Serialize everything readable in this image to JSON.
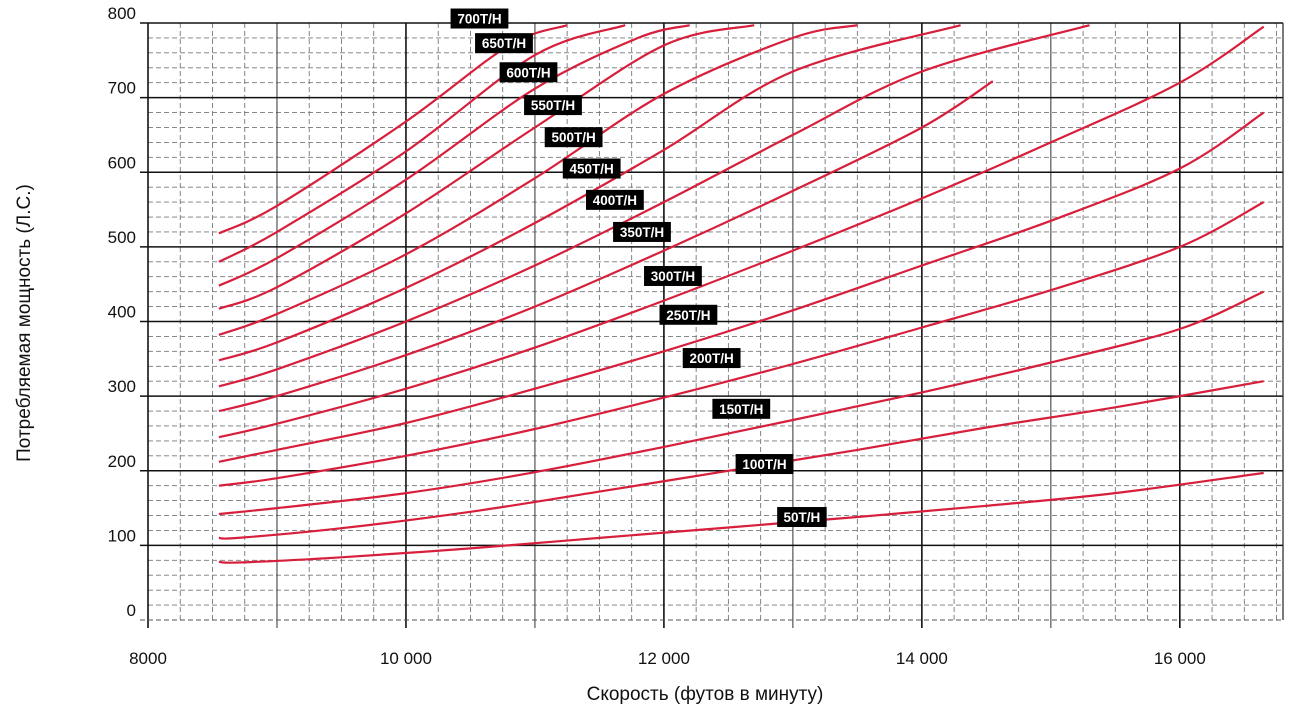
{
  "chart_data": {
    "type": "line",
    "title": "",
    "xlabel": "Скорость (футов в минуту)",
    "ylabel": "Потребляемая мощность (Л.С.)",
    "xlim": [
      8000,
      16800
    ],
    "ylim": [
      0,
      800
    ],
    "x_ticks": [
      8000,
      10000,
      12000,
      14000,
      16000
    ],
    "x_tick_labels": [
      "8000",
      "10 000",
      "12 000",
      "14 000",
      "16 000"
    ],
    "y_ticks": [
      0,
      100,
      200,
      300,
      400,
      500,
      600,
      700,
      800
    ],
    "y_tick_labels": [
      "0",
      "100",
      "200",
      "300",
      "400",
      "500",
      "600",
      "700",
      "800"
    ],
    "grid": true,
    "line_color": "#d71f3c",
    "label_bg_color": "#000000",
    "series": [
      {
        "name": "50T/H",
        "x": [
          8550,
          8700,
          9500,
          10500,
          11500,
          12500,
          13500,
          14500,
          15500,
          16650
        ],
        "y": [
          78,
          77,
          84,
          96,
          110,
          124,
          138,
          153,
          170,
          197
        ],
        "label_x": 13070,
        "label_y": 138
      },
      {
        "name": "100T/H",
        "x": [
          8550,
          8700,
          9500,
          10500,
          11500,
          12500,
          13500,
          14500,
          15500,
          16650
        ],
        "y": [
          110,
          110,
          123,
          145,
          172,
          200,
          228,
          258,
          285,
          320
        ],
        "label_x": 12780,
        "label_y": 209
      },
      {
        "name": "150T/H",
        "x": [
          8550,
          9000,
          10000,
          11000,
          12000,
          13000,
          14000,
          15000,
          16000,
          16650
        ],
        "y": [
          142,
          150,
          170,
          198,
          232,
          268,
          305,
          345,
          390,
          440
        ],
        "label_x": 12600,
        "label_y": 283
      },
      {
        "name": "200T/H",
        "x": [
          8550,
          9000,
          10000,
          11000,
          12000,
          13000,
          14000,
          15000,
          16000,
          16650
        ],
        "y": [
          180,
          190,
          220,
          256,
          298,
          343,
          392,
          442,
          500,
          560
        ],
        "label_x": 12370,
        "label_y": 351
      },
      {
        "name": "250T/H",
        "x": [
          8550,
          9000,
          10000,
          11000,
          12000,
          13000,
          14000,
          15000,
          16000,
          16650
        ],
        "y": [
          212,
          228,
          264,
          310,
          360,
          415,
          475,
          535,
          605,
          680
        ],
        "label_x": 12190,
        "label_y": 409
      },
      {
        "name": "300T/H",
        "x": [
          8550,
          9000,
          10000,
          11000,
          12000,
          13000,
          14000,
          15000,
          16000,
          16650
        ],
        "y": [
          245,
          263,
          310,
          365,
          428,
          495,
          565,
          640,
          720,
          795
        ],
        "label_x": 12070,
        "label_y": 461
      },
      {
        "name": "350T/H",
        "x": [
          8550,
          9000,
          10000,
          11000,
          12000,
          13000,
          14000,
          14550
        ],
        "y": [
          280,
          300,
          355,
          420,
          495,
          575,
          660,
          722
        ],
        "label_x": 11830,
        "label_y": 520
      },
      {
        "name": "400T/H",
        "x": [
          8550,
          9000,
          10000,
          11000,
          12000,
          13000,
          14000,
          15300
        ],
        "y": [
          313,
          336,
          400,
          475,
          560,
          650,
          735,
          797
        ],
        "label_x": 11620,
        "label_y": 563
      },
      {
        "name": "450T/H",
        "x": [
          8550,
          9000,
          10000,
          11000,
          12000,
          13000,
          14300
        ],
        "y": [
          348,
          372,
          445,
          532,
          630,
          735,
          797
        ],
        "label_x": 11440,
        "label_y": 605
      },
      {
        "name": "500T/H",
        "x": [
          8550,
          9000,
          10000,
          11000,
          12000,
          13000,
          13500
        ],
        "y": [
          382,
          410,
          490,
          592,
          705,
          780,
          797
        ],
        "label_x": 11300,
        "label_y": 647
      },
      {
        "name": "550T/H",
        "x": [
          8550,
          9000,
          10000,
          11000,
          12000,
          12700
        ],
        "y": [
          417,
          446,
          545,
          660,
          770,
          797
        ],
        "label_x": 11140,
        "label_y": 690
      },
      {
        "name": "600T/H",
        "x": [
          8550,
          9000,
          10000,
          11000,
          11800,
          12200
        ],
        "y": [
          448,
          485,
          590,
          712,
          780,
          797
        ],
        "label_x": 10950,
        "label_y": 734
      },
      {
        "name": "650T/H",
        "x": [
          8550,
          9000,
          10000,
          11000,
          11700
        ],
        "y": [
          480,
          520,
          628,
          757,
          797
        ],
        "label_x": 10760,
        "label_y": 773
      },
      {
        "name": "700T/H",
        "x": [
          8550,
          9000,
          10000,
          10800,
          11250
        ],
        "y": [
          518,
          555,
          668,
          770,
          797
        ],
        "label_x": 10570,
        "label_y": 806
      }
    ]
  }
}
